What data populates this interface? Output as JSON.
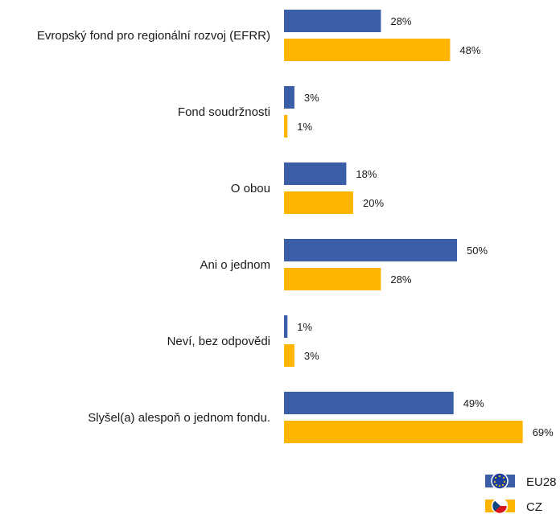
{
  "chart_data": {
    "type": "bar",
    "orientation": "horizontal",
    "categories": [
      "Evropský fond pro regionální rozvoj (EFRR)",
      "Fond soudržnosti",
      "O obou",
      "Ani o jednom",
      "Neví, bez odpovědi",
      "Slyšel(a) alespoň o jednom fondu."
    ],
    "series": [
      {
        "name": "EU28",
        "color": "#3a5ea8",
        "values": [
          28,
          3,
          18,
          50,
          1,
          49
        ]
      },
      {
        "name": "CZ",
        "color": "#ffb400",
        "values": [
          48,
          1,
          20,
          28,
          3,
          69
        ]
      }
    ],
    "value_suffix": "%",
    "xlim": [
      0,
      100
    ],
    "grid": false,
    "legend_position": "bottom-right",
    "legend_icons": [
      "eu-flag-icon",
      "czech-flag-icon"
    ]
  }
}
